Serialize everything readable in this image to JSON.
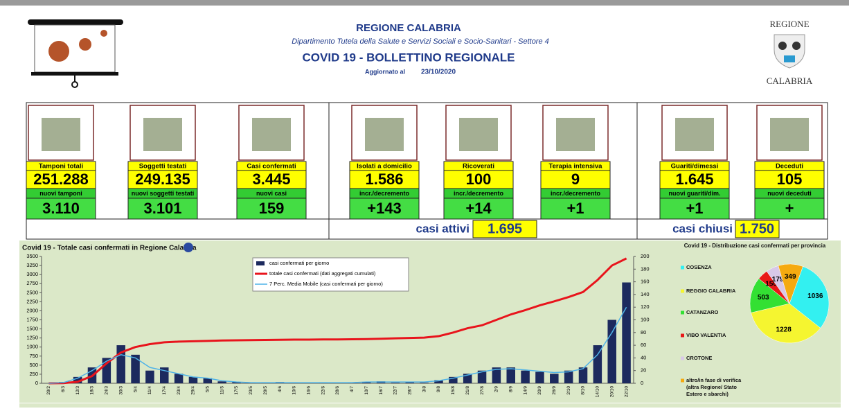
{
  "header": {
    "region": "REGIONE CALABRIA",
    "department": "Dipartimento Tutela della Salute e Servizi Sociali e Socio-Sanitari - Settore 4",
    "title": "COVID 19 - BOLLETTINO REGIONALE",
    "updated_label": "Aggiornato al",
    "updated_date": "23/10/2020",
    "logo_top": "REGIONE",
    "logo_bottom": "CALABRIA"
  },
  "cards": [
    {
      "label": "Tamponi totali",
      "value": "251.288",
      "sublabel": "nuovi tamponi",
      "subvalue": "3.110"
    },
    {
      "label": "Soggetti testati",
      "value": "249.135",
      "sublabel": "nuovi soggetti testati",
      "subvalue": "3.101"
    },
    {
      "label": "Casi confermati",
      "value": "3.445",
      "sublabel": "nuovi casi",
      "subvalue": "159"
    },
    {
      "label": "Isolati a domicilio",
      "value": "1.586",
      "sublabel": "incr./decremento",
      "subvalue": "+143"
    },
    {
      "label": "Ricoverati",
      "value": "100",
      "sublabel": "incr./decremento",
      "subvalue": "+14"
    },
    {
      "label": "Terapia intensiva",
      "value": "9",
      "sublabel": "incr./decremento",
      "subvalue": "+1"
    },
    {
      "label": "Guariti/dimessi",
      "value": "1.645",
      "sublabel": "nuovi guariti/dim.",
      "subvalue": "+1"
    },
    {
      "label": "Deceduti",
      "value": "105",
      "sublabel": "nuovi deceduti",
      "subvalue": "+"
    }
  ],
  "summary": {
    "active_label": "casi attivi",
    "active_value": "1.695",
    "closed_label": "casi chiusi",
    "closed_value": "1.750"
  },
  "chart_data": [
    {
      "type": "bar",
      "title": "Covid 19 - Totale casi confermati in Regione Calabria",
      "categories": [
        "29/2",
        "6/3",
        "12/3",
        "18/3",
        "24/3",
        "30/3",
        "5/4",
        "11/4",
        "17/4",
        "23/4",
        "29/4",
        "5/5",
        "11/5",
        "17/5",
        "23/5",
        "29/5",
        "4/6",
        "10/6",
        "16/6",
        "22/6",
        "28/6",
        "4/7",
        "10/7",
        "16/7",
        "22/7",
        "28/7",
        "3/8",
        "9/8",
        "15/8",
        "21/8",
        "27/8",
        "2/9",
        "8/9",
        "14/9",
        "20/9",
        "26/9",
        "2/10",
        "8/10",
        "14/10",
        "20/10",
        "22/10"
      ],
      "series": [
        {
          "name": "casi confermati per giorno",
          "type": "bar",
          "axis": "y2",
          "color": "#1c2a5e",
          "values": [
            0,
            2,
            10,
            25,
            40,
            60,
            45,
            20,
            25,
            15,
            10,
            8,
            3,
            2,
            1,
            1,
            2,
            1,
            0,
            1,
            0,
            1,
            2,
            3,
            1,
            2,
            1,
            5,
            10,
            15,
            20,
            25,
            25,
            20,
            18,
            15,
            20,
            25,
            60,
            100,
            159
          ]
        },
        {
          "name": "totale casi confermati (dati aggregati cumulati)",
          "type": "line",
          "color": "#e8141c",
          "values": [
            0,
            5,
            40,
            200,
            550,
            850,
            1000,
            1080,
            1130,
            1150,
            1160,
            1170,
            1180,
            1185,
            1190,
            1195,
            1200,
            1205,
            1205,
            1210,
            1210,
            1215,
            1220,
            1230,
            1240,
            1250,
            1260,
            1300,
            1400,
            1520,
            1600,
            1750,
            1900,
            2020,
            2150,
            2260,
            2380,
            2520,
            2850,
            3250,
            3445
          ]
        },
        {
          "name": "7 Perc. Media Mobile (casi confermati per giorno)",
          "type": "line",
          "axis": "y2",
          "color": "#4fb3e8",
          "values": [
            0,
            1,
            8,
            20,
            35,
            45,
            40,
            25,
            20,
            15,
            10,
            8,
            4,
            2,
            1,
            1,
            1,
            1,
            1,
            1,
            1,
            1,
            2,
            2,
            2,
            2,
            2,
            4,
            8,
            13,
            18,
            22,
            23,
            21,
            19,
            17,
            18,
            23,
            45,
            80,
            120
          ]
        }
      ],
      "ylim": [
        0,
        3500
      ],
      "yticks": [
        0,
        250,
        500,
        750,
        1000,
        1250,
        1500,
        1750,
        2000,
        2250,
        2500,
        2750,
        3000,
        3250,
        3500
      ],
      "y2lim": [
        0,
        200
      ],
      "y2ticks": [
        0,
        20,
        40,
        60,
        80,
        100,
        120,
        140,
        160,
        180,
        200
      ]
    },
    {
      "type": "pie",
      "title": "Covid 19 - Distribuzione casi confermati per provincia",
      "categories": [
        "COSENZA",
        "REGGIO CALABRIA",
        "CATANZARO",
        "VIBO VALENTIA",
        "CROTONE",
        "altro/in fase di verifica (altra Regione/ Stato Estero e sbarchi)"
      ],
      "values": [
        1036,
        1228,
        503,
        150,
        179,
        349
      ],
      "colors": [
        "#33f0f0",
        "#f5f530",
        "#33e033",
        "#e81818",
        "#d8c8e8",
        "#f5aa10"
      ]
    }
  ]
}
